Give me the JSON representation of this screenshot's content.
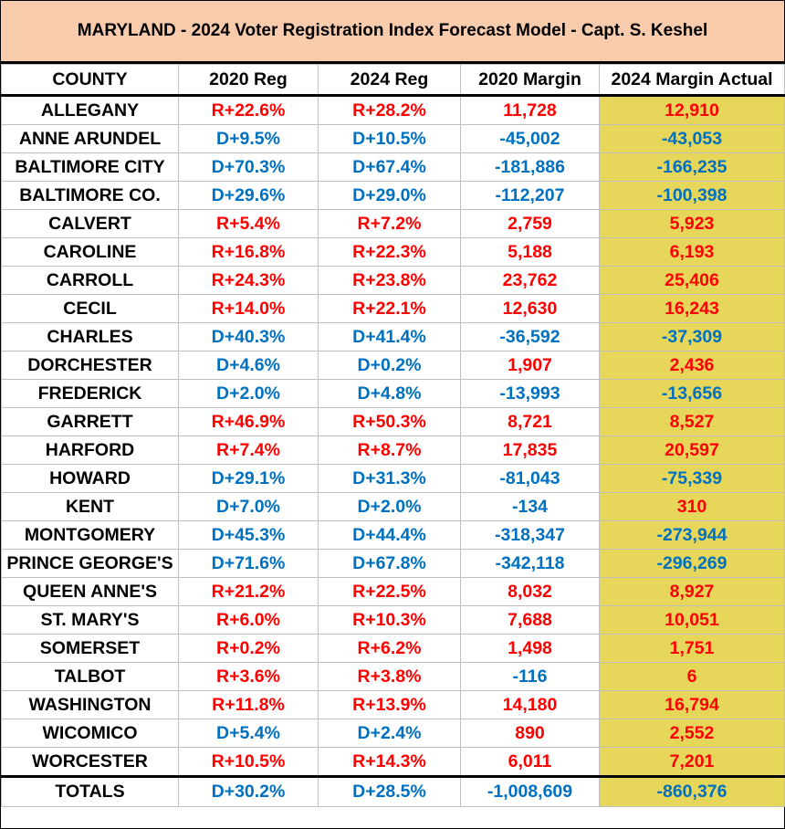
{
  "title": "MARYLAND -  2024 Voter Registration Index Forecast Model - Capt. S. Keshel",
  "colors": {
    "red": "#ff0000",
    "blue": "#0070c0",
    "highlight": "#e6d75b",
    "title_bg": "#f8cbad"
  },
  "headers": [
    "COUNTY",
    "2020 Reg",
    "2024 Reg",
    "2020 Margin",
    "2024 Margin Actual"
  ],
  "rows": [
    {
      "county": "ALLEGANY",
      "reg2020": "R+22.6%",
      "reg2024": "R+28.2%",
      "margin2020": "11,728",
      "margin2024": "12,910"
    },
    {
      "county": "ANNE ARUNDEL",
      "reg2020": "D+9.5%",
      "reg2024": "D+10.5%",
      "margin2020": "-45,002",
      "margin2024": "-43,053"
    },
    {
      "county": "BALTIMORE CITY",
      "reg2020": "D+70.3%",
      "reg2024": "D+67.4%",
      "margin2020": "-181,886",
      "margin2024": "-166,235"
    },
    {
      "county": "BALTIMORE CO.",
      "reg2020": "D+29.6%",
      "reg2024": "D+29.0%",
      "margin2020": "-112,207",
      "margin2024": "-100,398"
    },
    {
      "county": "CALVERT",
      "reg2020": "R+5.4%",
      "reg2024": "R+7.2%",
      "margin2020": "2,759",
      "margin2024": "5,923"
    },
    {
      "county": "CAROLINE",
      "reg2020": "R+16.8%",
      "reg2024": "R+22.3%",
      "margin2020": "5,188",
      "margin2024": "6,193"
    },
    {
      "county": "CARROLL",
      "reg2020": "R+24.3%",
      "reg2024": "R+23.8%",
      "margin2020": "23,762",
      "margin2024": "25,406"
    },
    {
      "county": "CECIL",
      "reg2020": "R+14.0%",
      "reg2024": "R+22.1%",
      "margin2020": "12,630",
      "margin2024": "16,243"
    },
    {
      "county": "CHARLES",
      "reg2020": "D+40.3%",
      "reg2024": "D+41.4%",
      "margin2020": "-36,592",
      "margin2024": "-37,309"
    },
    {
      "county": "DORCHESTER",
      "reg2020": "D+4.6%",
      "reg2024": "D+0.2%",
      "margin2020": "1,907",
      "margin2024": "2,436"
    },
    {
      "county": "FREDERICK",
      "reg2020": "D+2.0%",
      "reg2024": "D+4.8%",
      "margin2020": "-13,993",
      "margin2024": "-13,656"
    },
    {
      "county": "GARRETT",
      "reg2020": "R+46.9%",
      "reg2024": "R+50.3%",
      "margin2020": "8,721",
      "margin2024": "8,527"
    },
    {
      "county": "HARFORD",
      "reg2020": "R+7.4%",
      "reg2024": "R+8.7%",
      "margin2020": "17,835",
      "margin2024": "20,597"
    },
    {
      "county": "HOWARD",
      "reg2020": "D+29.1%",
      "reg2024": "D+31.3%",
      "margin2020": "-81,043",
      "margin2024": "-75,339"
    },
    {
      "county": "KENT",
      "reg2020": "D+7.0%",
      "reg2024": "D+2.0%",
      "margin2020": "-134",
      "margin2024": "310"
    },
    {
      "county": "MONTGOMERY",
      "reg2020": "D+45.3%",
      "reg2024": "D+44.4%",
      "margin2020": "-318,347",
      "margin2024": "-273,944"
    },
    {
      "county": "PRINCE GEORGE'S",
      "reg2020": "D+71.6%",
      "reg2024": "D+67.8%",
      "margin2020": "-342,118",
      "margin2024": "-296,269"
    },
    {
      "county": "QUEEN ANNE'S",
      "reg2020": "R+21.2%",
      "reg2024": "R+22.5%",
      "margin2020": "8,032",
      "margin2024": "8,927"
    },
    {
      "county": "ST. MARY'S",
      "reg2020": "R+6.0%",
      "reg2024": "R+10.3%",
      "margin2020": "7,688",
      "margin2024": "10,051"
    },
    {
      "county": "SOMERSET",
      "reg2020": "R+0.2%",
      "reg2024": "R+6.2%",
      "margin2020": "1,498",
      "margin2024": "1,751"
    },
    {
      "county": "TALBOT",
      "reg2020": "R+3.6%",
      "reg2024": "R+3.8%",
      "margin2020": "-116",
      "margin2024": "6"
    },
    {
      "county": "WASHINGTON",
      "reg2020": "R+11.8%",
      "reg2024": "R+13.9%",
      "margin2020": "14,180",
      "margin2024": "16,794"
    },
    {
      "county": "WICOMICO",
      "reg2020": "D+5.4%",
      "reg2024": "D+2.4%",
      "margin2020": "890",
      "margin2024": "2,552"
    },
    {
      "county": "WORCESTER",
      "reg2020": "R+10.5%",
      "reg2024": "R+14.3%",
      "margin2020": "6,011",
      "margin2024": "7,201"
    }
  ],
  "totals": {
    "county": "TOTALS",
    "reg2020": "D+30.2%",
    "reg2024": "D+28.5%",
    "margin2020": "-1,008,609",
    "margin2024": "-860,376"
  }
}
